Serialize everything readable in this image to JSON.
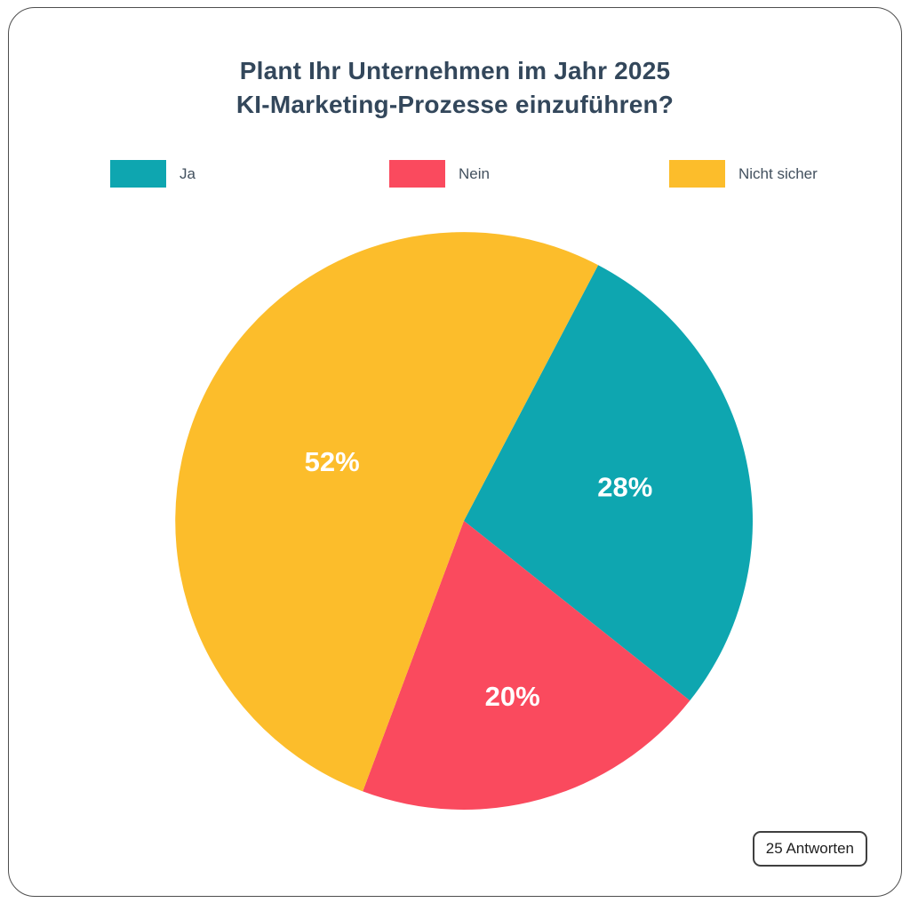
{
  "title": {
    "line1": "Plant Ihr Unternehmen im Jahr 2025",
    "line2": "KI-Marketing-Prozesse einzuführen?"
  },
  "legend": [
    {
      "label": "Ja",
      "color": "#0ea6b0"
    },
    {
      "label": "Nein",
      "color": "#fa4a5e"
    },
    {
      "label": "Nicht sicher",
      "color": "#fcbd2b"
    }
  ],
  "badge": {
    "label": "25 Antworten"
  },
  "chart_data": {
    "type": "pie",
    "title": "Plant Ihr Unternehmen im Jahr 2025 KI-Marketing-Prozesse einzuführen?",
    "categories": [
      "Ja",
      "Nein",
      "Nicht sicher"
    ],
    "values": [
      28,
      20,
      52
    ],
    "labels": [
      "28%",
      "20%",
      "52%"
    ],
    "colors": [
      "#0ea6b0",
      "#fa4a5e",
      "#fcbd2b"
    ],
    "unit": "%",
    "total_responses": 25,
    "legend_position": "top",
    "direction": "clockwise",
    "start_angle_deg_from_north": 27.7,
    "label_color": "#ffffff",
    "label_radius_fraction": [
      0.57,
      0.63,
      0.5
    ]
  }
}
